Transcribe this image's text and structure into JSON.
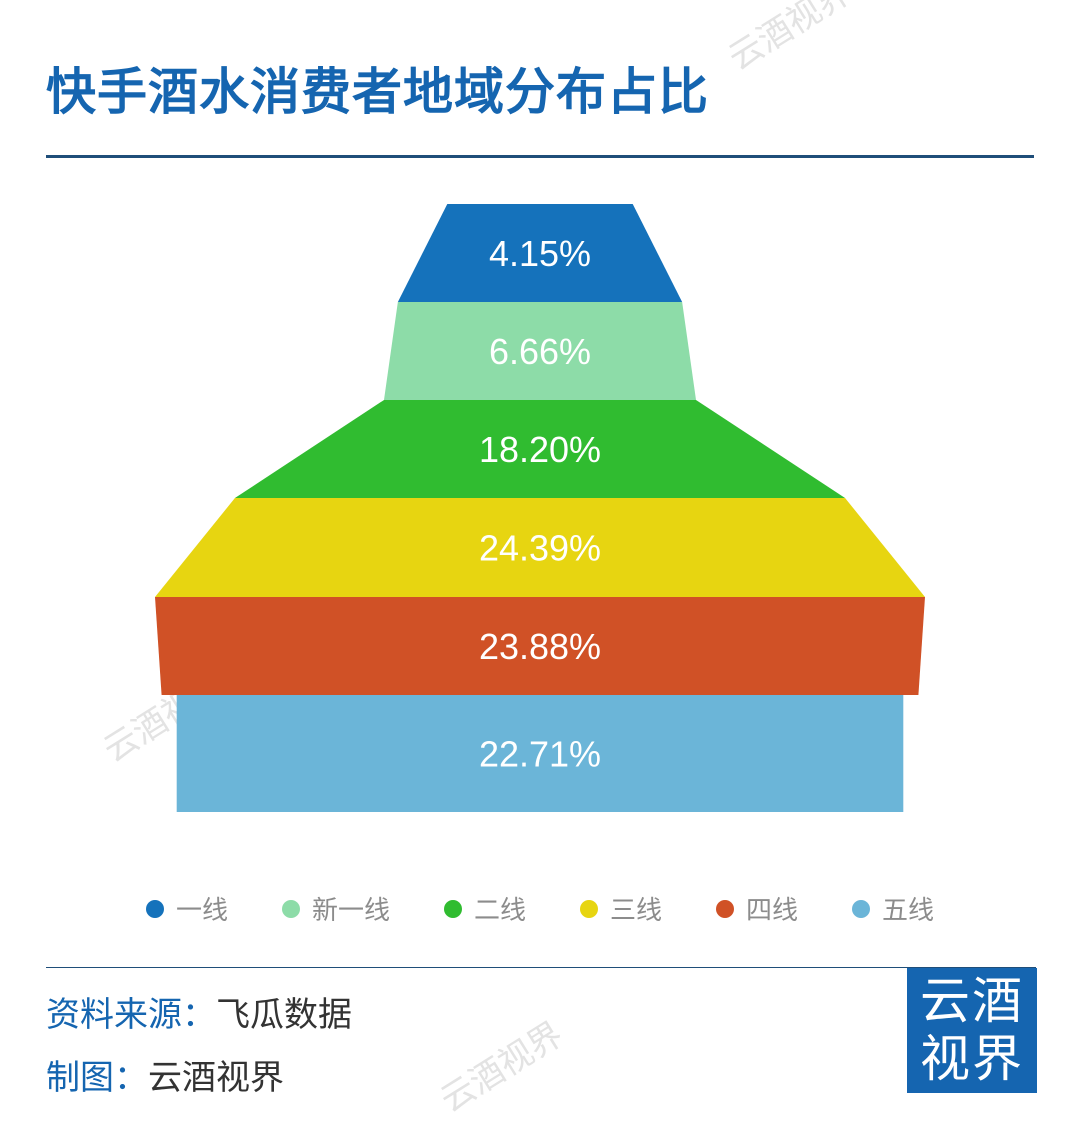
{
  "title": "快手酒水消费者地域分布占比",
  "chart_data": {
    "type": "funnel",
    "categories": [
      "一线",
      "新一线",
      "二线",
      "三线",
      "四线",
      "五线"
    ],
    "values": [
      4.15,
      6.66,
      18.2,
      24.39,
      23.88,
      22.71
    ],
    "labels": [
      "4.15%",
      "6.66%",
      "18.20%",
      "24.39%",
      "23.88%",
      "22.71%"
    ],
    "colors": [
      "#1572bb",
      "#8ddca8",
      "#30bc30",
      "#e7d511",
      "#d05126",
      "#6bb5d8"
    ],
    "legend_position": "bottom"
  },
  "source": {
    "label": "资料来源：",
    "value": "飞瓜数据"
  },
  "maker": {
    "label": "制图：",
    "value": "云酒视界"
  },
  "logo": {
    "line1": "云酒",
    "line2": "视界"
  },
  "watermark": "云酒视界"
}
